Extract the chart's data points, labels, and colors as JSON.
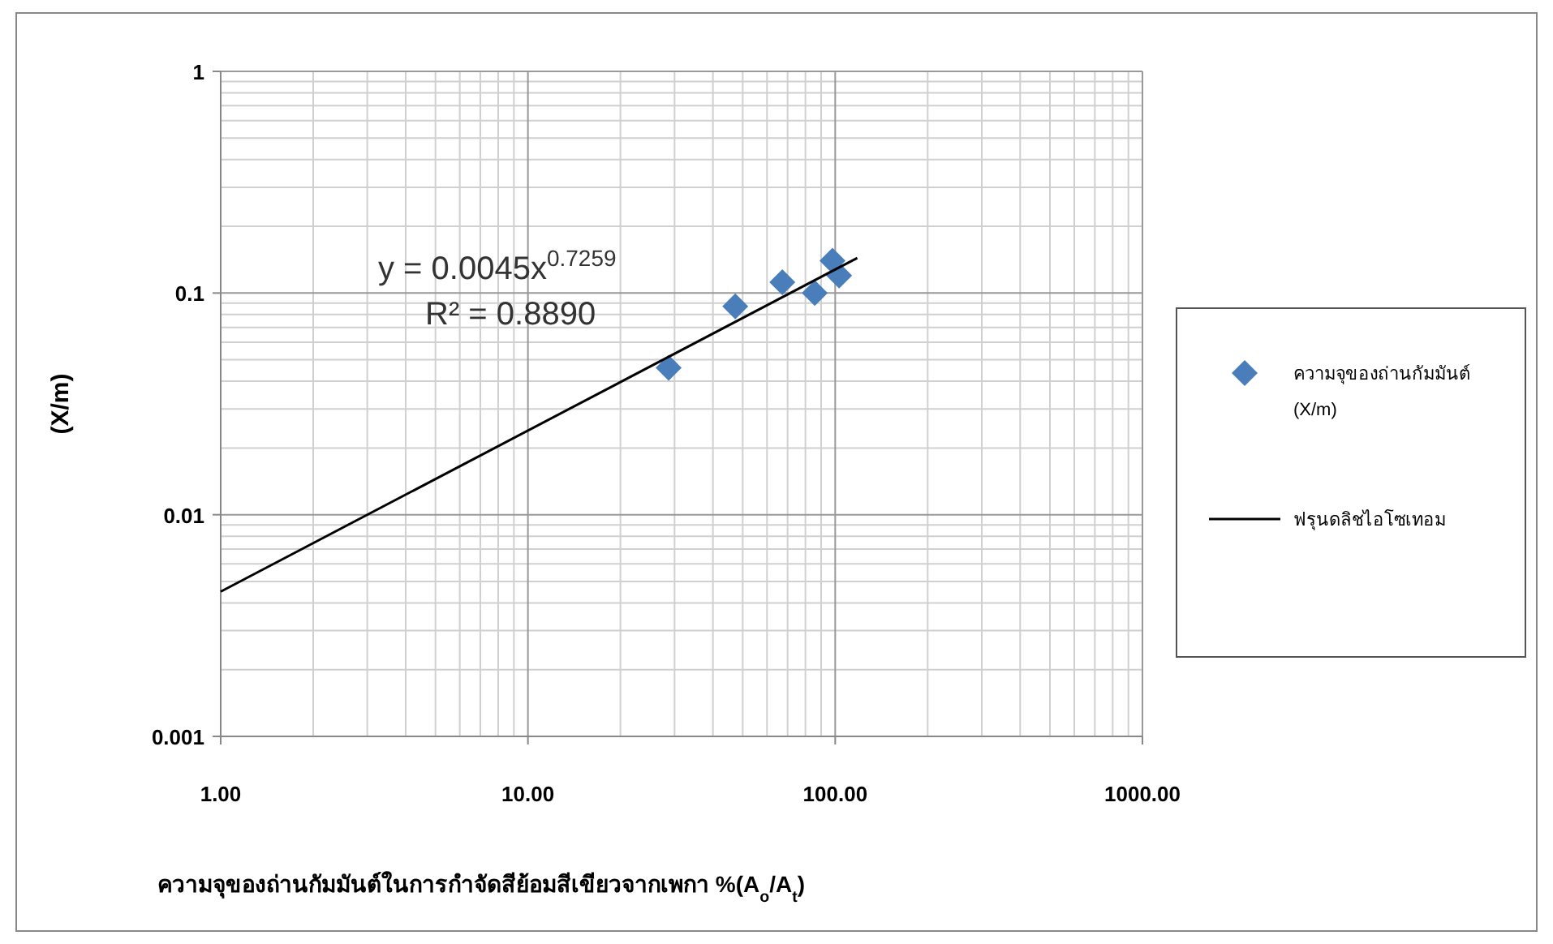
{
  "chart_data": {
    "type": "scatter",
    "xlabel": "ความจุของถ่านกัมมันต์ในการกำจัดสีย้อมสีเขียวจากเพกา %(A$_{o}$/A$_{t}$)",
    "ylabel": "(X/m)",
    "log": "xy",
    "xlim": [
      1,
      1000
    ],
    "ylim": [
      0.001,
      1
    ],
    "xticks": [
      {
        "value": 1,
        "label": "1.00"
      },
      {
        "value": 10,
        "label": "10.00"
      },
      {
        "value": 100,
        "label": "100.00"
      },
      {
        "value": 1000,
        "label": "1000.00"
      }
    ],
    "yticks": [
      0.001,
      0.01,
      0.1,
      1
    ],
    "grid": true,
    "legend": "right",
    "annotations": [
      "y = 0.0045x$^{0.7259}$",
      "R² = 0.8890"
    ],
    "series": [
      {
        "name": "ความจุของถ่านกัมมันต์ (X/m)",
        "marker": "diamond",
        "color": "#4a7ebb",
        "x": [
          28.7,
          47.3,
          67.3,
          85.8,
          98,
          103
        ],
        "values": [
          0.046,
          0.087,
          0.112,
          0.1,
          0.14,
          0.12
        ]
      },
      {
        "name": "ฟรุนดลิชไอโซเทอม",
        "type": "line",
        "line_style": "solid",
        "color": "#000000",
        "x": [
          1,
          118
        ],
        "values": [
          0.0045,
          0.144
        ]
      }
    ]
  }
}
